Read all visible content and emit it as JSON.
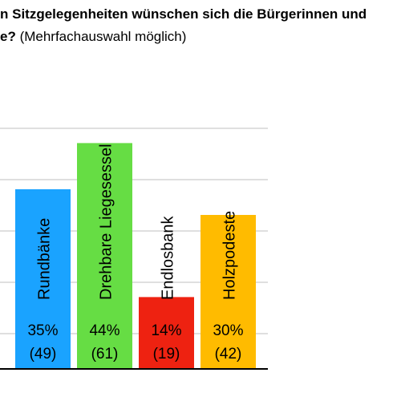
{
  "title": {
    "line1": "n Sitzgelegenheiten wünschen sich die Bürgerinnen und",
    "line2_bold": "e?",
    "line2_rest": " (Mehrfachauswahl möglich)"
  },
  "colors": {
    "rundbaenke": "#1aa3ff",
    "liegesessel": "#66dd44",
    "endlosbank": "#ee2211",
    "holzpodeste": "#ffbb00",
    "gridline": "#cccccc",
    "axis": "#000000"
  },
  "chart_data": {
    "type": "bar",
    "categories": [
      "Rundbänke",
      "Drehbare Liegesessel",
      "Endlosbank",
      "Holzpodeste"
    ],
    "values": [
      35,
      44,
      14,
      30
    ],
    "percent_labels": [
      "35%",
      "44%",
      "14%",
      "30%"
    ],
    "count_labels": [
      "(49)",
      "(61)",
      "(19)",
      "(42)"
    ],
    "ylim": [
      0,
      50
    ],
    "grid": true,
    "legend": "none"
  }
}
